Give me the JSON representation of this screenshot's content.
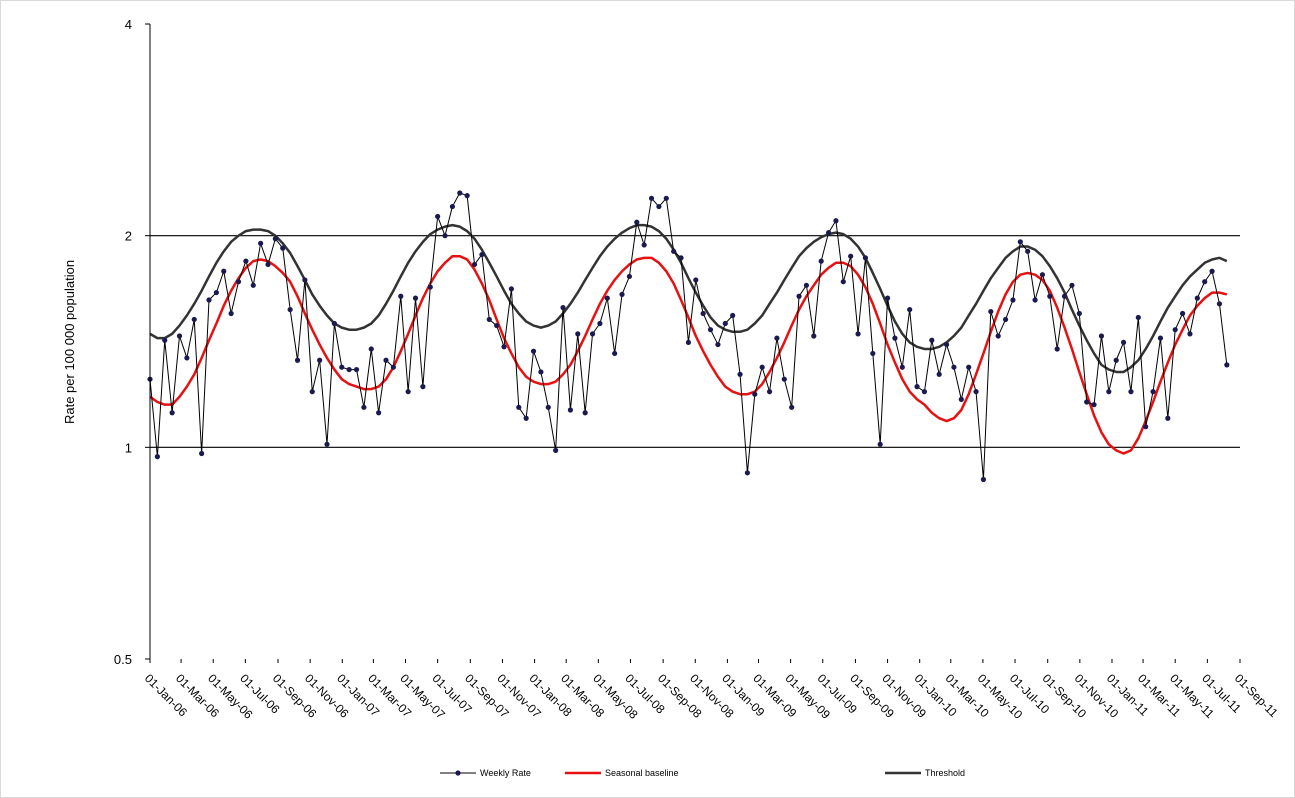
{
  "chart_data": {
    "type": "line",
    "y_label": "Rate per 100 000 population",
    "log_y": true,
    "grid": true,
    "legend": "bottom",
    "ylim": [
      0.5,
      4
    ],
    "yticks": [
      0.5,
      1,
      2,
      4
    ],
    "xlim": [
      "2006-01-01",
      "2011-09-01"
    ],
    "xticks": [
      {
        "value": "2006-01-01",
        "label": "01-Jan-06"
      },
      {
        "value": "2006-03-01",
        "label": "01-Mar-06"
      },
      {
        "value": "2006-05-01",
        "label": "01-May-06"
      },
      {
        "value": "2006-07-01",
        "label": "01-Jul-06"
      },
      {
        "value": "2006-09-01",
        "label": "01-Sep-06"
      },
      {
        "value": "2006-11-01",
        "label": "01-Nov-06"
      },
      {
        "value": "2007-01-01",
        "label": "01-Jan-07"
      },
      {
        "value": "2007-03-01",
        "label": "01-Mar-07"
      },
      {
        "value": "2007-05-01",
        "label": "01-May-07"
      },
      {
        "value": "2007-07-01",
        "label": "01-Jul-07"
      },
      {
        "value": "2007-09-01",
        "label": "01-Sep-07"
      },
      {
        "value": "2007-11-01",
        "label": "01-Nov-07"
      },
      {
        "value": "2008-01-01",
        "label": "01-Jan-08"
      },
      {
        "value": "2008-03-01",
        "label": "01-Mar-08"
      },
      {
        "value": "2008-05-01",
        "label": "01-May-08"
      },
      {
        "value": "2008-07-01",
        "label": "01-Jul-08"
      },
      {
        "value": "2008-09-01",
        "label": "01-Sep-08"
      },
      {
        "value": "2008-11-01",
        "label": "01-Nov-08"
      },
      {
        "value": "2009-01-01",
        "label": "01-Jan-09"
      },
      {
        "value": "2009-03-01",
        "label": "01-Mar-09"
      },
      {
        "value": "2009-05-01",
        "label": "01-May-09"
      },
      {
        "value": "2009-07-01",
        "label": "01-Jul-09"
      },
      {
        "value": "2009-09-01",
        "label": "01-Sep-09"
      },
      {
        "value": "2009-11-01",
        "label": "01-Nov-09"
      },
      {
        "value": "2010-01-01",
        "label": "01-Jan-10"
      },
      {
        "value": "2010-03-01",
        "label": "01-Mar-10"
      },
      {
        "value": "2010-05-01",
        "label": "01-May-10"
      },
      {
        "value": "2010-07-01",
        "label": "01-Jul-10"
      },
      {
        "value": "2010-09-01",
        "label": "01-Sep-10"
      },
      {
        "value": "2010-11-01",
        "label": "01-Nov-10"
      },
      {
        "value": "2011-01-01",
        "label": "01-Jan-11"
      },
      {
        "value": "2011-03-01",
        "label": "01-Mar-11"
      },
      {
        "value": "2011-05-01",
        "label": "01-May-11"
      },
      {
        "value": "2011-07-01",
        "label": "01-Jul-11"
      },
      {
        "value": "2011-09-01",
        "label": "01-Sep-11"
      }
    ],
    "x": [
      "2006-01-01",
      "2006-01-15",
      "2006-01-29",
      "2006-02-12",
      "2006-02-26",
      "2006-03-12",
      "2006-03-26",
      "2006-04-09",
      "2006-04-23",
      "2006-05-07",
      "2006-05-21",
      "2006-06-04",
      "2006-06-18",
      "2006-07-02",
      "2006-07-16",
      "2006-07-30",
      "2006-08-13",
      "2006-08-27",
      "2006-09-10",
      "2006-09-24",
      "2006-10-08",
      "2006-10-22",
      "2006-11-05",
      "2006-11-19",
      "2006-12-03",
      "2006-12-17",
      "2006-12-31",
      "2007-01-14",
      "2007-01-28",
      "2007-02-11",
      "2007-02-25",
      "2007-03-11",
      "2007-03-25",
      "2007-04-08",
      "2007-04-22",
      "2007-05-06",
      "2007-05-20",
      "2007-06-03",
      "2007-06-17",
      "2007-07-01",
      "2007-07-15",
      "2007-07-29",
      "2007-08-12",
      "2007-08-26",
      "2007-09-09",
      "2007-09-23",
      "2007-10-07",
      "2007-10-21",
      "2007-11-04",
      "2007-11-18",
      "2007-12-02",
      "2007-12-16",
      "2007-12-30",
      "2008-01-13",
      "2008-01-27",
      "2008-02-10",
      "2008-02-24",
      "2008-03-09",
      "2008-03-23",
      "2008-04-06",
      "2008-04-20",
      "2008-05-04",
      "2008-05-18",
      "2008-06-01",
      "2008-06-15",
      "2008-06-29",
      "2008-07-13",
      "2008-07-27",
      "2008-08-10",
      "2008-08-24",
      "2008-09-07",
      "2008-09-21",
      "2008-10-05",
      "2008-10-19",
      "2008-11-02",
      "2008-11-16",
      "2008-11-30",
      "2008-12-14",
      "2008-12-28",
      "2009-01-11",
      "2009-01-25",
      "2009-02-08",
      "2009-02-22",
      "2009-03-08",
      "2009-03-22",
      "2009-04-05",
      "2009-04-19",
      "2009-05-03",
      "2009-05-17",
      "2009-05-31",
      "2009-06-14",
      "2009-06-28",
      "2009-07-12",
      "2009-07-26",
      "2009-08-09",
      "2009-08-23",
      "2009-09-06",
      "2009-09-20",
      "2009-10-04",
      "2009-10-18",
      "2009-11-01",
      "2009-11-15",
      "2009-11-29",
      "2009-12-13",
      "2009-12-27",
      "2010-01-10",
      "2010-01-24",
      "2010-02-07",
      "2010-02-21",
      "2010-03-07",
      "2010-03-21",
      "2010-04-04",
      "2010-04-18",
      "2010-05-02",
      "2010-05-16",
      "2010-05-30",
      "2010-06-13",
      "2010-06-27",
      "2010-07-11",
      "2010-07-25",
      "2010-08-08",
      "2010-08-22",
      "2010-09-05",
      "2010-09-19",
      "2010-10-03",
      "2010-10-17",
      "2010-10-31",
      "2010-11-14",
      "2010-11-28",
      "2010-12-12",
      "2010-12-26",
      "2011-01-09",
      "2011-01-23",
      "2011-02-06",
      "2011-02-20",
      "2011-03-06",
      "2011-03-20",
      "2011-04-03",
      "2011-04-17",
      "2011-05-01",
      "2011-05-15",
      "2011-05-29",
      "2011-06-12",
      "2011-06-26",
      "2011-07-10",
      "2011-07-24",
      "2011-08-07"
    ],
    "series": [
      {
        "name": "Weekly Rate",
        "color": "#1a1a50",
        "marker": "circle",
        "values": [
          1.25,
          0.97,
          1.42,
          1.12,
          1.44,
          1.34,
          1.52,
          0.98,
          1.62,
          1.66,
          1.78,
          1.55,
          1.72,
          1.84,
          1.7,
          1.95,
          1.82,
          1.98,
          1.92,
          1.57,
          1.33,
          1.73,
          1.2,
          1.33,
          1.01,
          1.5,
          1.3,
          1.29,
          1.29,
          1.14,
          1.38,
          1.12,
          1.33,
          1.3,
          1.64,
          1.2,
          1.63,
          1.22,
          1.69,
          2.13,
          2.0,
          2.2,
          2.3,
          2.28,
          1.82,
          1.88,
          1.52,
          1.49,
          1.39,
          1.68,
          1.14,
          1.1,
          1.37,
          1.28,
          1.14,
          0.99,
          1.58,
          1.13,
          1.45,
          1.12,
          1.45,
          1.5,
          1.63,
          1.36,
          1.65,
          1.75,
          2.09,
          1.94,
          2.26,
          2.2,
          2.26,
          1.9,
          1.86,
          1.41,
          1.73,
          1.55,
          1.47,
          1.4,
          1.5,
          1.54,
          1.27,
          0.92,
          1.19,
          1.3,
          1.2,
          1.43,
          1.25,
          1.14,
          1.64,
          1.7,
          1.44,
          1.84,
          2.02,
          2.1,
          1.72,
          1.87,
          1.45,
          1.86,
          1.36,
          1.01,
          1.63,
          1.43,
          1.3,
          1.57,
          1.22,
          1.2,
          1.42,
          1.27,
          1.4,
          1.3,
          1.17,
          1.3,
          1.2,
          0.9,
          1.56,
          1.44,
          1.52,
          1.62,
          1.96,
          1.9,
          1.62,
          1.76,
          1.64,
          1.38,
          1.64,
          1.7,
          1.55,
          1.16,
          1.15,
          1.44,
          1.2,
          1.33,
          1.41,
          1.2,
          1.53,
          1.07,
          1.2,
          1.43,
          1.1,
          1.47,
          1.55,
          1.45,
          1.63,
          1.72,
          1.78,
          1.6,
          1.31
        ]
      },
      {
        "name": "Seasonal baseline",
        "color": "#e81010",
        "values": [
          1.18,
          1.16,
          1.15,
          1.15,
          1.18,
          1.22,
          1.27,
          1.34,
          1.42,
          1.5,
          1.59,
          1.67,
          1.74,
          1.8,
          1.84,
          1.85,
          1.84,
          1.81,
          1.77,
          1.72,
          1.64,
          1.55,
          1.47,
          1.4,
          1.34,
          1.29,
          1.25,
          1.23,
          1.22,
          1.21,
          1.21,
          1.22,
          1.25,
          1.3,
          1.37,
          1.45,
          1.54,
          1.63,
          1.71,
          1.78,
          1.83,
          1.87,
          1.87,
          1.85,
          1.79,
          1.71,
          1.62,
          1.52,
          1.43,
          1.36,
          1.3,
          1.26,
          1.24,
          1.23,
          1.23,
          1.24,
          1.27,
          1.31,
          1.37,
          1.44,
          1.52,
          1.6,
          1.67,
          1.73,
          1.78,
          1.82,
          1.85,
          1.86,
          1.86,
          1.83,
          1.78,
          1.71,
          1.62,
          1.53,
          1.44,
          1.37,
          1.31,
          1.26,
          1.22,
          1.2,
          1.19,
          1.19,
          1.2,
          1.23,
          1.28,
          1.34,
          1.41,
          1.49,
          1.57,
          1.64,
          1.7,
          1.76,
          1.8,
          1.83,
          1.83,
          1.81,
          1.76,
          1.69,
          1.6,
          1.5,
          1.4,
          1.32,
          1.25,
          1.2,
          1.17,
          1.15,
          1.12,
          1.1,
          1.09,
          1.1,
          1.13,
          1.19,
          1.27,
          1.36,
          1.46,
          1.56,
          1.65,
          1.72,
          1.76,
          1.77,
          1.76,
          1.73,
          1.67,
          1.58,
          1.48,
          1.38,
          1.28,
          1.19,
          1.11,
          1.05,
          1.01,
          0.99,
          0.98,
          0.99,
          1.03,
          1.09,
          1.16,
          1.24,
          1.32,
          1.4,
          1.47,
          1.54,
          1.59,
          1.63,
          1.66,
          1.66,
          1.65
        ]
      },
      {
        "name": "Threshold",
        "color": "#333333",
        "values": [
          1.45,
          1.43,
          1.43,
          1.45,
          1.49,
          1.54,
          1.6,
          1.67,
          1.75,
          1.83,
          1.9,
          1.96,
          2.0,
          2.03,
          2.04,
          2.04,
          2.03,
          2.0,
          1.95,
          1.89,
          1.81,
          1.73,
          1.65,
          1.59,
          1.54,
          1.5,
          1.48,
          1.47,
          1.47,
          1.48,
          1.5,
          1.54,
          1.6,
          1.67,
          1.75,
          1.83,
          1.9,
          1.96,
          2.01,
          2.04,
          2.06,
          2.07,
          2.06,
          2.03,
          1.98,
          1.91,
          1.83,
          1.75,
          1.67,
          1.6,
          1.55,
          1.51,
          1.49,
          1.48,
          1.49,
          1.51,
          1.55,
          1.6,
          1.66,
          1.73,
          1.8,
          1.87,
          1.93,
          1.98,
          2.02,
          2.05,
          2.07,
          2.07,
          2.06,
          2.03,
          1.98,
          1.91,
          1.83,
          1.74,
          1.66,
          1.59,
          1.53,
          1.49,
          1.47,
          1.46,
          1.46,
          1.47,
          1.5,
          1.54,
          1.6,
          1.66,
          1.73,
          1.8,
          1.87,
          1.92,
          1.96,
          1.99,
          2.01,
          2.02,
          2.01,
          1.98,
          1.93,
          1.86,
          1.77,
          1.68,
          1.59,
          1.51,
          1.45,
          1.41,
          1.39,
          1.38,
          1.38,
          1.39,
          1.41,
          1.44,
          1.48,
          1.54,
          1.6,
          1.67,
          1.74,
          1.8,
          1.86,
          1.9,
          1.93,
          1.93,
          1.91,
          1.87,
          1.81,
          1.74,
          1.66,
          1.57,
          1.49,
          1.42,
          1.36,
          1.31,
          1.29,
          1.28,
          1.28,
          1.3,
          1.33,
          1.38,
          1.44,
          1.51,
          1.58,
          1.64,
          1.7,
          1.75,
          1.79,
          1.83,
          1.85,
          1.86,
          1.84
        ]
      }
    ]
  }
}
